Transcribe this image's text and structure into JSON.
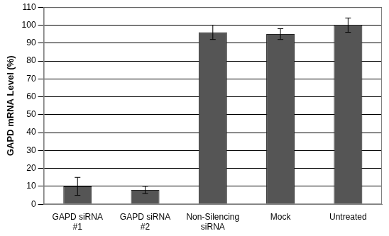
{
  "chart_data": {
    "type": "bar",
    "y_label": "GAPD mRNA Level (%)",
    "categories": [
      "GAPD siRNA #1",
      "GAPD siRNA #2",
      "Non-Silencing siRNA",
      "Mock",
      "Untreated"
    ],
    "values": [
      10,
      8,
      96,
      95,
      100
    ],
    "errors": [
      5,
      2,
      4,
      3,
      4
    ],
    "color": "#555555",
    "ylim": [
      0,
      110
    ],
    "yticks": [
      0,
      10,
      20,
      30,
      40,
      50,
      60,
      70,
      80,
      90,
      100,
      110
    ],
    "grid": true
  }
}
